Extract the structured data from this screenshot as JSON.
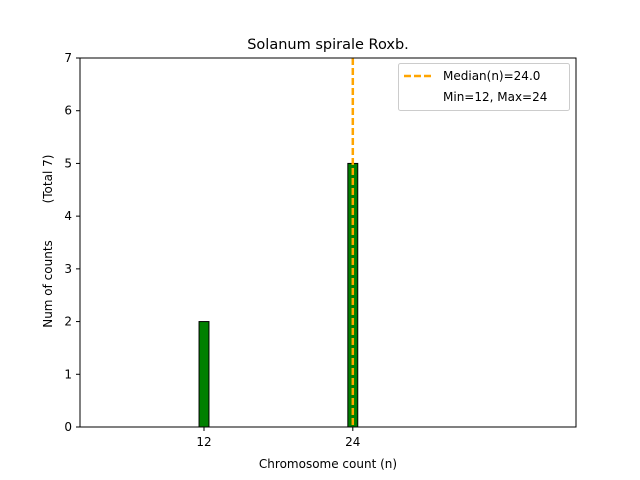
{
  "chart_data": {
    "type": "bar",
    "title": "Solanum spirale Roxb.",
    "xlabel": "Chromosome count (n)",
    "ylabel": "Num of counts",
    "ylabel_total": "(Total 7)",
    "xlim": [
      2,
      42
    ],
    "ylim": [
      0,
      7
    ],
    "x_ticks": [
      12,
      24
    ],
    "y_ticks": [
      0,
      1,
      2,
      3,
      4,
      5,
      6,
      7
    ],
    "bar_width": 0.8,
    "bars": [
      {
        "x": 12,
        "value": 2
      },
      {
        "x": 24,
        "value": 5
      }
    ],
    "baseline_extent": [
      2,
      25.5
    ],
    "median_line": {
      "x": 24.0,
      "label": "Median(n)=24.0"
    },
    "legend": {
      "placement": "upper right",
      "entries": [
        "Median(n)=24.0",
        "Min=12, Max=24"
      ]
    },
    "grid": false,
    "colors": {
      "bar_fill": "#008000",
      "bar_edge": "#000000",
      "median_line": "#ffa500",
      "axes": "#000000"
    }
  }
}
